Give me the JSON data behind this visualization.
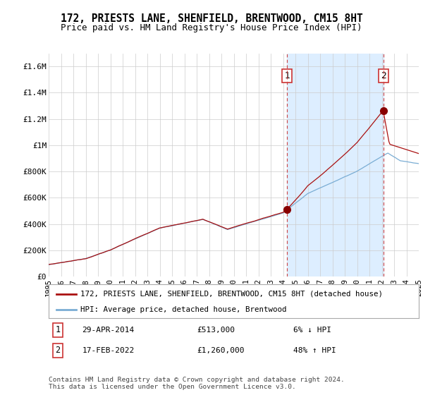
{
  "title": "172, PRIESTS LANE, SHENFIELD, BRENTWOOD, CM15 8HT",
  "subtitle": "Price paid vs. HM Land Registry's House Price Index (HPI)",
  "ylim": [
    0,
    1700000
  ],
  "yticks": [
    0,
    200000,
    400000,
    600000,
    800000,
    1000000,
    1200000,
    1400000,
    1600000
  ],
  "ytick_labels": [
    "£0",
    "£200K",
    "£400K",
    "£600K",
    "£800K",
    "£1M",
    "£1.2M",
    "£1.4M",
    "£1.6M"
  ],
  "xmin_year": 1995,
  "xmax_year": 2025,
  "xtick_years": [
    1995,
    1996,
    1997,
    1998,
    1999,
    2000,
    2001,
    2002,
    2003,
    2004,
    2005,
    2006,
    2007,
    2008,
    2009,
    2010,
    2011,
    2012,
    2013,
    2014,
    2015,
    2016,
    2017,
    2018,
    2019,
    2020,
    2021,
    2022,
    2023,
    2024,
    2025
  ],
  "hpi_color": "#7aadd4",
  "price_color": "#aa1111",
  "marker1_x": 2014.33,
  "marker1_y": 513000,
  "marker2_x": 2022.12,
  "marker2_y": 1260000,
  "vline1_x": 2014.33,
  "vline2_x": 2022.12,
  "legend_label_price": "172, PRIESTS LANE, SHENFIELD, BRENTWOOD, CM15 8HT (detached house)",
  "legend_label_hpi": "HPI: Average price, detached house, Brentwood",
  "note1_label": "1",
  "note1_date": "29-APR-2014",
  "note1_price": "£513,000",
  "note1_pct": "6% ↓ HPI",
  "note2_label": "2",
  "note2_date": "17-FEB-2022",
  "note2_price": "£1,260,000",
  "note2_pct": "48% ↑ HPI",
  "footer": "Contains HM Land Registry data © Crown copyright and database right 2024.\nThis data is licensed under the Open Government Licence v3.0.",
  "bg_color": "#ffffff",
  "grid_color": "#cccccc",
  "span_color": "#ddeeff"
}
